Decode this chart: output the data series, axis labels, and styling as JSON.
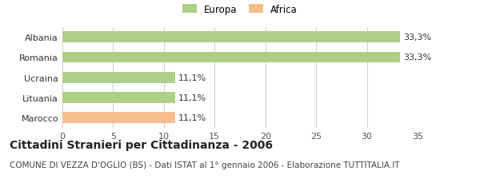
{
  "categories": [
    "Albania",
    "Romania",
    "Ucraina",
    "Lituania",
    "Marocco"
  ],
  "values": [
    33.3,
    33.3,
    11.1,
    11.1,
    11.1
  ],
  "bar_colors": [
    "#aecf8a",
    "#aecf8a",
    "#aecf8a",
    "#aecf8a",
    "#f5be8e"
  ],
  "labels": [
    "33,3%",
    "33,3%",
    "11,1%",
    "11,1%",
    "11,1%"
  ],
  "legend_items": [
    {
      "label": "Europa",
      "color": "#aecf8a"
    },
    {
      "label": "Africa",
      "color": "#f5be8e"
    }
  ],
  "xlim": [
    0,
    35
  ],
  "xticks": [
    0,
    5,
    10,
    15,
    20,
    25,
    30,
    35
  ],
  "title": "Cittadini Stranieri per Cittadinanza - 2006",
  "subtitle": "COMUNE DI VEZZA D'OGLIO (BS) - Dati ISTAT al 1° gennaio 2006 - Elaborazione TUTTITALIA.IT",
  "bg_color": "#ffffff",
  "grid_color": "#cccccc",
  "bar_edge_color": "none",
  "label_fontsize": 8.0,
  "tick_fontsize": 8.0,
  "title_fontsize": 10,
  "subtitle_fontsize": 7.5,
  "legend_fontsize": 8.5,
  "bar_height": 0.55
}
